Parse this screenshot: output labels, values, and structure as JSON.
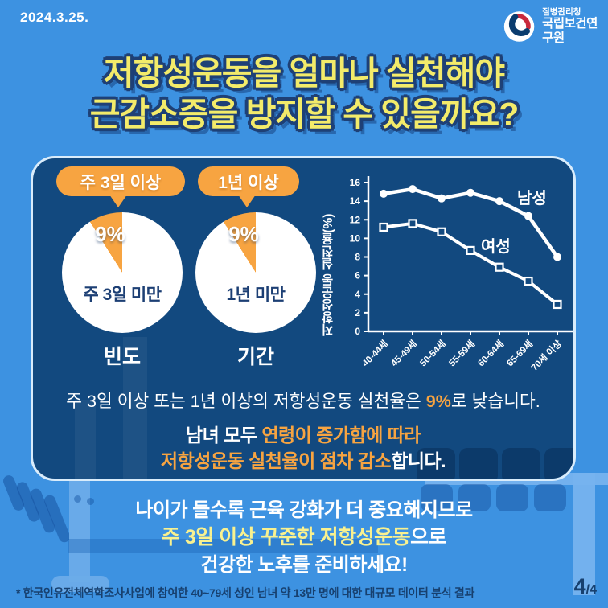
{
  "header": {
    "date": "2024.3.25.",
    "logo": {
      "agency_small": "질병관리청",
      "agency_large": "국립보건연구원"
    }
  },
  "title": {
    "line1": "저항성운동을 얼마나 실천해야",
    "line2": "근감소증을 방지할 수 있을까요?"
  },
  "chart_data": [
    {
      "type": "pie",
      "title": "빈도",
      "callout": "주 3일 이상",
      "percent_label": "9%",
      "slices": [
        {
          "label": "주 3일 이상",
          "value": 9
        },
        {
          "label": "주 3일 미만",
          "value": 91
        }
      ],
      "slice_color": "#F7A441",
      "rest_color": "#FFFFFF"
    },
    {
      "type": "pie",
      "title": "기간",
      "callout": "1년 이상",
      "percent_label": "9%",
      "slices": [
        {
          "label": "1년 이상",
          "value": 9
        },
        {
          "label": "1년 미만",
          "value": 91
        }
      ],
      "slice_color": "#F7A441",
      "rest_color": "#FFFFFF"
    },
    {
      "type": "line",
      "title": "",
      "xlabel": "",
      "ylabel": "저항성운동 실천율(%)",
      "categories": [
        "40-44세",
        "45-49세",
        "50-54세",
        "55-59세",
        "60-64세",
        "65-69세",
        "70세 이상"
      ],
      "series": [
        {
          "name": "남성",
          "marker": "circle",
          "values": [
            14.8,
            15.3,
            14.3,
            14.9,
            14.0,
            12.4,
            8.0
          ]
        },
        {
          "name": "여성",
          "marker": "square",
          "values": [
            11.2,
            11.6,
            10.7,
            8.7,
            6.9,
            5.4,
            2.9
          ]
        }
      ],
      "ylim": [
        0,
        16
      ],
      "ytick_step": 2,
      "grid": false,
      "legend_position": "inline",
      "line_color": "#FFFFFF"
    }
  ],
  "panel": {
    "finding": {
      "pre": "주 3일 이상 또는 1년 이상의 저항성운동 실천율은 ",
      "em": "9%",
      "post": "로 낮습니다."
    },
    "trend": {
      "line1_pre": "남녀 모두 ",
      "line1_em": "연령이 증가함에 따라",
      "line2_em": "저항성운동 실천율이 점차 감소",
      "line2_post": "합니다."
    }
  },
  "advice": {
    "line1": "나이가 들수록 근육 강화가 더 중요해지므로",
    "line2_em": "주 3일 이상 꾸준한 저항성운동",
    "line2_post": "으로",
    "line3": "건강한 노후를 준비하세요!"
  },
  "footer": {
    "note": "* 한국인유전체역학조사사업에 참여한 40~79세 성인 남녀 약 13만 명에 대한 대규모 데이터 분석 결과",
    "page_current": "4",
    "page_rest": "/4"
  },
  "colors": {
    "background": "#3D92E1",
    "panel": "#12497F",
    "panel_border": "#D9ECFB",
    "orange": "#F7A441",
    "title_yellow": "#F3EB6A",
    "title_outline": "#1E4076",
    "advice_yellow": "#F9F18F",
    "footer_navy": "#17406F",
    "pie_text_navy": "#1C3F74",
    "logo_red": "#C8293C",
    "logo_navy": "#0A3C6E",
    "chart_line": "#FFFFFF"
  }
}
